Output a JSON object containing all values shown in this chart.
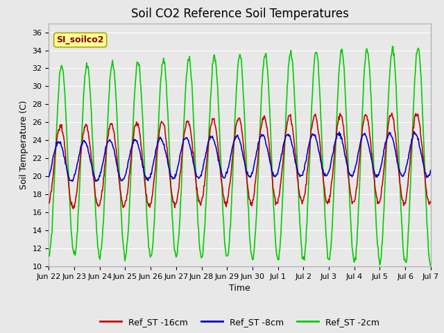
{
  "title": "Soil CO2 Reference Soil Temperatures",
  "xlabel": "Time",
  "ylabel": "Soil Temperature (C)",
  "ylim": [
    10,
    37
  ],
  "yticks": [
    10,
    12,
    14,
    16,
    18,
    20,
    22,
    24,
    26,
    28,
    30,
    32,
    34,
    36
  ],
  "background_color": "#e8e8e8",
  "grid_color": "#ffffff",
  "title_fontsize": 12,
  "label_fontsize": 9,
  "tick_fontsize": 8,
  "line_colors": {
    "ref16": "#cc0000",
    "ref8": "#0000cc",
    "ref2": "#00cc00"
  },
  "line_width": 1.2,
  "legend_labels": [
    "Ref_ST -16cm",
    "Ref_ST -8cm",
    "Ref_ST -2cm"
  ],
  "annotation_text": "SI_soilco2",
  "annotation_color": "#8b0000",
  "annotation_bg": "#ffff99",
  "annotation_border": "#aaaa00",
  "x_tick_labels": [
    "Jun 22",
    "Jun 23",
    "Jun 24",
    "Jun 25",
    "Jun 26",
    "Jun 27",
    "Jun 28",
    "Jun 29",
    "Jun 30",
    "Jul 1",
    "Jul 2",
    "Jul 3",
    "Jul 4",
    "Jul 5",
    "Jul 6",
    "Jul 7"
  ],
  "num_days": 16
}
